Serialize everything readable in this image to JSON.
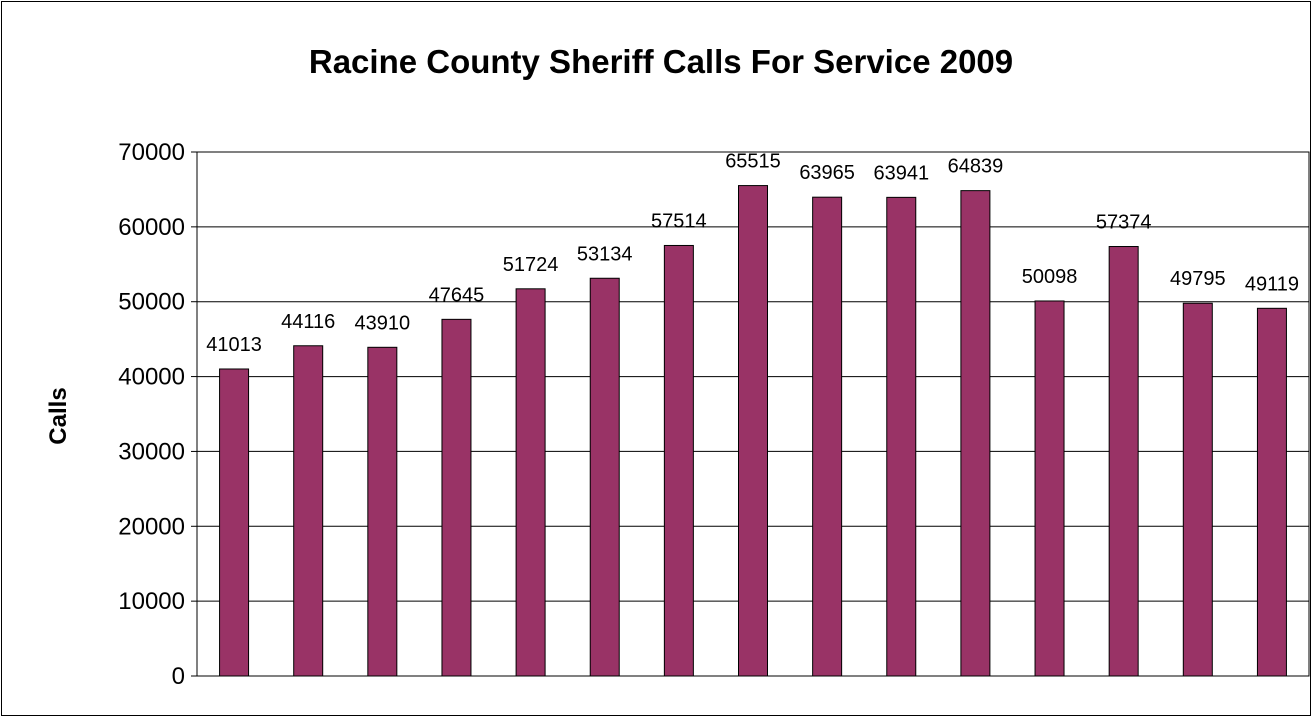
{
  "chart_data": {
    "type": "bar",
    "title": "Racine County Sheriff Calls For Service 2009",
    "xlabel": "",
    "ylabel": "Calls",
    "ylim": [
      0,
      70000
    ],
    "yticks": [
      0,
      10000,
      20000,
      30000,
      40000,
      50000,
      60000,
      70000
    ],
    "grid": true,
    "legend": "none",
    "bar_color": "#993366",
    "values": [
      41013,
      44116,
      43910,
      47645,
      51724,
      53134,
      57514,
      65515,
      63965,
      63941,
      64839,
      50098,
      57374,
      49795,
      49119
    ],
    "data_labels": [
      "41013",
      "44116",
      "43910",
      "47645",
      "51724",
      "53134",
      "57514",
      "65515",
      "63965",
      "63941",
      "64839",
      "50098",
      "57374",
      "49795",
      "49119"
    ]
  }
}
